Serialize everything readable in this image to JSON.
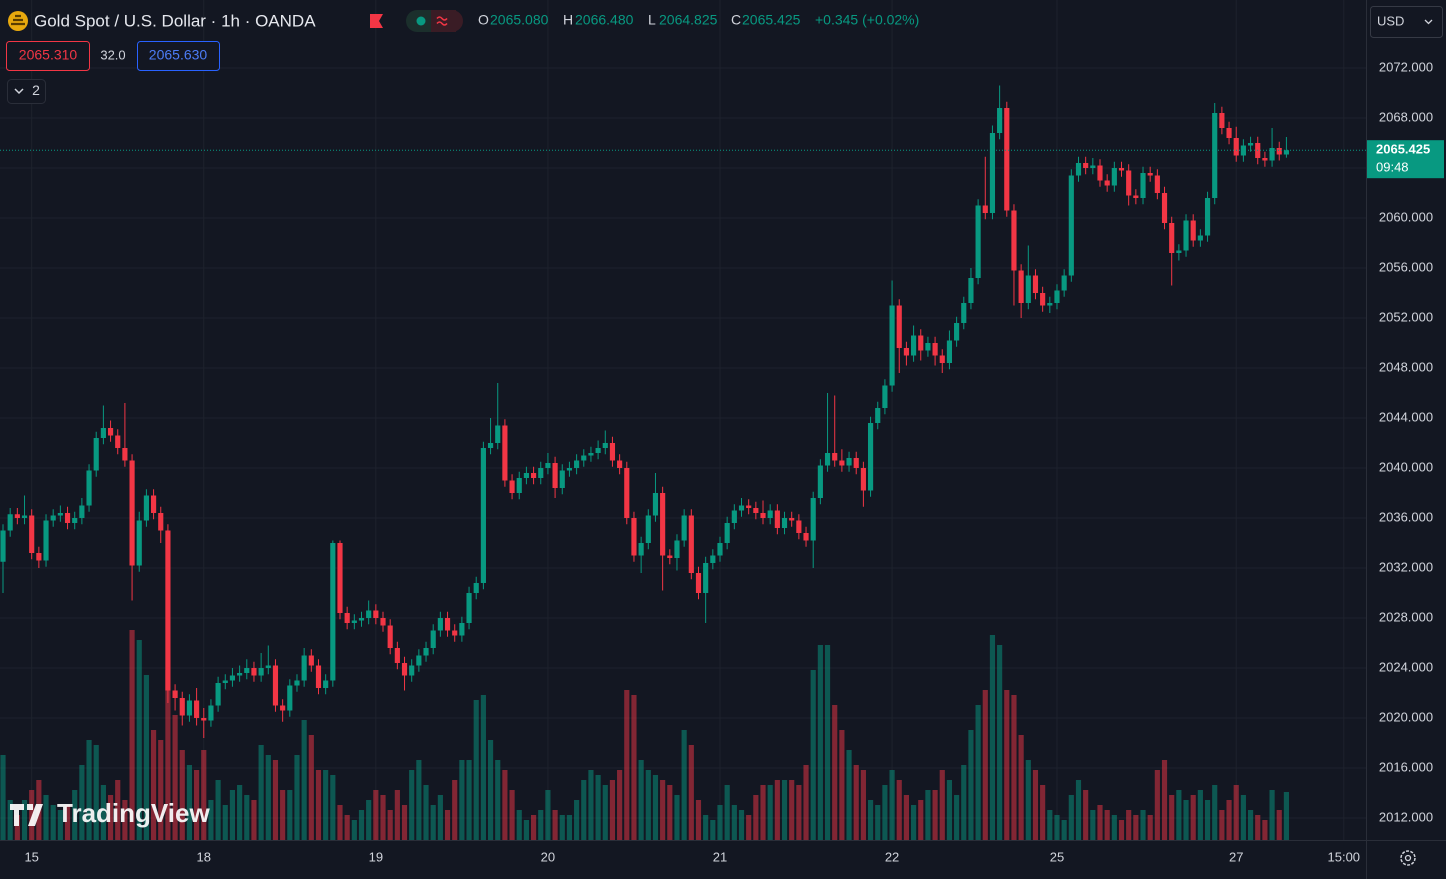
{
  "chart_data": {
    "type": "candlestick",
    "title": "Gold Spot / U.S. Dollar · 1h · OANDA",
    "legend": [
      {
        "key": "O",
        "value": "2065.080"
      },
      {
        "key": "H",
        "value": "2066.480"
      },
      {
        "key": "L",
        "value": "2064.825"
      },
      {
        "key": "C",
        "value": "2065.425"
      }
    ],
    "change": "+0.345 (+0.02%)",
    "bid": "2065.310",
    "spread": "32.0",
    "ask": "2065.630",
    "indicator_count": "2",
    "currency": "USD",
    "watermark": "TradingView",
    "up_color": "#089981",
    "down_color": "#f23645",
    "grid": true,
    "open": [
      2032.5,
      2035.0,
      2036.3,
      2036.0,
      2036.2,
      2033.2,
      2032.6,
      2035.8,
      2036.2,
      2036.4,
      2035.6,
      2036.0,
      2037.0,
      2039.8,
      2042.4,
      2043.2,
      2042.6,
      2041.6,
      2040.6,
      2032.2,
      2035.8,
      2037.8,
      2036.4,
      2035.0,
      2022.2,
      2021.6,
      2020.2,
      2021.4,
      2020.0,
      2019.8,
      2021.0,
      2022.8,
      2023.0,
      2023.4,
      2023.6,
      2024.0,
      2023.4,
      2024.0,
      2024.2,
      2021.0,
      2020.6,
      2022.6,
      2023.0,
      2025.0,
      2024.2,
      2022.4,
      2023.0,
      2034.0,
      2028.4,
      2027.6,
      2027.8,
      2028.0,
      2028.6,
      2028.0,
      2027.4,
      2025.6,
      2024.4,
      2023.4,
      2024.2,
      2025.0,
      2025.6,
      2027.0,
      2028.0,
      2027.0,
      2026.6,
      2027.6,
      2030.0,
      2030.8,
      2041.6,
      2042.0,
      2043.4,
      2039.0,
      2038.0,
      2039.2,
      2039.6,
      2039.2,
      2040.0,
      2040.4,
      2038.4,
      2039.8,
      2040.0,
      2040.6,
      2041.0,
      2041.2,
      2041.6,
      2042.0,
      2040.6,
      2040.0,
      2036.0,
      2033.0,
      2034.0,
      2036.2,
      2038.0,
      2033.0,
      2032.8,
      2034.2,
      2036.2,
      2031.6,
      2030.0,
      2032.4,
      2033.0,
      2034.0,
      2035.6,
      2036.6,
      2037.0,
      2036.8,
      2036.4,
      2036.0,
      2036.6,
      2035.2,
      2036.0,
      2035.8,
      2034.8,
      2034.2,
      2037.6,
      2040.2,
      2041.2,
      2040.6,
      2040.2,
      2040.8,
      2040.0,
      2038.2,
      2043.6,
      2044.8,
      2046.6,
      2053.0,
      2049.6,
      2049.0,
      2050.6,
      2049.4,
      2050.0,
      2049.0,
      2048.4,
      2050.2,
      2051.6,
      2053.2,
      2055.2,
      2061.0,
      2060.4,
      2066.8,
      2068.8,
      2060.6,
      2055.8,
      2053.2,
      2055.4,
      2054.0,
      2053.0,
      2053.2,
      2054.2,
      2055.4,
      2063.4,
      2064.4,
      2064.0,
      2064.2,
      2063.0,
      2062.6,
      2064.0,
      2063.8,
      2061.8,
      2061.6,
      2063.6,
      2063.4,
      2062.0,
      2059.6,
      2057.2,
      2057.4,
      2059.8,
      2058.2,
      2058.6,
      2061.6,
      2068.4,
      2067.2,
      2066.4,
      2065.0,
      2065.8,
      2066.0,
      2064.8,
      2064.6,
      2065.6,
      2065.08
    ],
    "high": [
      2035.5,
      2036.8,
      2036.8,
      2037.8,
      2036.7,
      2033.7,
      2036.3,
      2036.7,
      2037.0,
      2036.9,
      2036.5,
      2037.6,
      2040.3,
      2042.9,
      2045.0,
      2043.8,
      2043.1,
      2045.2,
      2041.1,
      2036.5,
      2038.3,
      2038.3,
      2036.9,
      2035.5,
      2022.7,
      2022.1,
      2021.9,
      2022.4,
      2020.8,
      2021.5,
      2023.3,
      2023.5,
      2024.0,
      2024.2,
      2024.7,
      2024.5,
      2025.2,
      2025.8,
      2024.7,
      2021.5,
      2023.1,
      2023.5,
      2025.6,
      2025.5,
      2024.7,
      2023.5,
      2034.2,
      2034.2,
      2028.9,
      2028.3,
      2028.5,
      2029.4,
      2029.1,
      2028.5,
      2027.9,
      2026.1,
      2024.9,
      2024.7,
      2025.5,
      2026.1,
      2027.5,
      2028.5,
      2028.5,
      2027.5,
      2028.1,
      2030.5,
      2031.3,
      2042.1,
      2044.0,
      2046.8,
      2043.9,
      2039.5,
      2039.7,
      2040.1,
      2040.1,
      2040.5,
      2041.2,
      2040.9,
      2040.3,
      2040.5,
      2041.1,
      2041.5,
      2041.7,
      2042.2,
      2043.0,
      2042.5,
      2041.1,
      2040.5,
      2036.5,
      2034.5,
      2036.7,
      2039.6,
      2038.5,
      2033.5,
      2034.7,
      2036.7,
      2036.7,
      2032.1,
      2032.9,
      2033.5,
      2034.5,
      2036.1,
      2037.1,
      2037.6,
      2037.5,
      2037.3,
      2037.4,
      2037.1,
      2037.1,
      2036.5,
      2036.5,
      2036.3,
      2035.3,
      2038.1,
      2040.7,
      2046.0,
      2045.8,
      2041.5,
      2041.3,
      2041.3,
      2040.5,
      2044.1,
      2045.3,
      2047.1,
      2055.0,
      2053.5,
      2050.1,
      2051.4,
      2051.1,
      2050.5,
      2050.5,
      2049.5,
      2051.0,
      2052.1,
      2053.7,
      2056.0,
      2061.5,
      2064.9,
      2067.4,
      2070.6,
      2069.3,
      2061.1,
      2056.3,
      2057.8,
      2055.9,
      2054.5,
      2053.7,
      2054.7,
      2055.9,
      2063.9,
      2064.9,
      2064.9,
      2064.8,
      2064.7,
      2063.5,
      2064.5,
      2064.5,
      2064.3,
      2062.3,
      2064.1,
      2064.1,
      2063.9,
      2062.5,
      2060.1,
      2057.9,
      2060.3,
      2060.3,
      2059.1,
      2062.1,
      2069.2,
      2068.9,
      2067.7,
      2067.3,
      2066.3,
      2066.5,
      2066.5,
      2065.3,
      2067.2,
      2066.1,
      2066.48
    ],
    "low": [
      2030.0,
      2034.5,
      2035.5,
      2035.5,
      2032.7,
      2032.0,
      2032.1,
      2035.3,
      2035.7,
      2035.1,
      2035.1,
      2035.5,
      2036.5,
      2039.3,
      2041.9,
      2042.1,
      2041.1,
      2040.1,
      2029.4,
      2031.7,
      2035.3,
      2035.9,
      2034.0,
      2021.2,
      2020.6,
      2019.4,
      2019.7,
      2019.4,
      2018.4,
      2019.3,
      2020.5,
      2022.3,
      2022.5,
      2022.9,
      2023.1,
      2022.9,
      2022.9,
      2023.5,
      2020.5,
      2019.7,
      2020.1,
      2022.1,
      2022.5,
      2023.7,
      2021.9,
      2021.9,
      2022.5,
      2027.9,
      2027.1,
      2027.1,
      2027.3,
      2027.5,
      2027.5,
      2026.9,
      2025.1,
      2023.9,
      2022.2,
      2022.9,
      2023.7,
      2024.5,
      2025.1,
      2026.5,
      2026.5,
      2026.1,
      2026.1,
      2027.1,
      2029.5,
      2030.3,
      2041.1,
      2041.5,
      2038.5,
      2037.5,
      2037.5,
      2038.7,
      2038.7,
      2038.7,
      2039.5,
      2037.6,
      2037.9,
      2039.3,
      2039.5,
      2040.1,
      2040.5,
      2040.7,
      2041.1,
      2040.1,
      2039.5,
      2035.5,
      2032.5,
      2031.6,
      2033.5,
      2035.7,
      2030.2,
      2032.3,
      2031.8,
      2033.7,
      2031.1,
      2029.5,
      2027.6,
      2031.9,
      2032.5,
      2033.5,
      2035.1,
      2036.1,
      2036.3,
      2035.9,
      2035.5,
      2035.5,
      2034.7,
      2034.7,
      2035.3,
      2034.3,
      2033.7,
      2032.0,
      2037.1,
      2039.7,
      2040.1,
      2039.7,
      2039.7,
      2039.5,
      2036.9,
      2037.7,
      2043.1,
      2044.3,
      2046.1,
      2047.6,
      2048.2,
      2048.5,
      2048.6,
      2048.9,
      2048.2,
      2047.6,
      2047.9,
      2049.7,
      2051.1,
      2052.7,
      2054.7,
      2059.9,
      2059.9,
      2066.3,
      2060.1,
      2053.0,
      2052.0,
      2052.7,
      2053.5,
      2052.5,
      2052.4,
      2052.7,
      2053.7,
      2054.9,
      2062.9,
      2063.5,
      2063.5,
      2062.5,
      2062.1,
      2062.1,
      2063.3,
      2061.0,
      2061.1,
      2061.1,
      2062.9,
      2061.5,
      2059.1,
      2054.6,
      2056.6,
      2056.9,
      2057.7,
      2057.7,
      2058.1,
      2061.1,
      2066.7,
      2065.9,
      2064.5,
      2064.5,
      2065.3,
      2064.3,
      2064.1,
      2064.1,
      2064.6,
      2064.825
    ],
    "close": [
      2035.0,
      2036.3,
      2036.0,
      2036.2,
      2033.2,
      2032.6,
      2035.8,
      2036.2,
      2036.4,
      2035.6,
      2036.0,
      2037.0,
      2039.8,
      2042.4,
      2043.2,
      2042.6,
      2041.6,
      2040.6,
      2032.2,
      2035.8,
      2037.8,
      2036.4,
      2035.0,
      2022.2,
      2021.6,
      2020.2,
      2021.4,
      2020.0,
      2019.8,
      2021.0,
      2022.8,
      2023.0,
      2023.4,
      2023.6,
      2024.0,
      2023.4,
      2024.0,
      2024.2,
      2021.0,
      2020.6,
      2022.6,
      2023.0,
      2025.0,
      2024.2,
      2022.4,
      2023.0,
      2034.0,
      2028.4,
      2027.6,
      2027.8,
      2028.0,
      2028.6,
      2028.0,
      2027.4,
      2025.6,
      2024.4,
      2023.4,
      2024.2,
      2025.0,
      2025.6,
      2027.0,
      2028.0,
      2027.0,
      2026.6,
      2027.6,
      2030.0,
      2030.8,
      2041.6,
      2042.0,
      2043.4,
      2039.0,
      2038.0,
      2039.2,
      2039.6,
      2039.2,
      2040.0,
      2040.4,
      2038.4,
      2039.8,
      2040.0,
      2040.6,
      2041.0,
      2041.2,
      2041.6,
      2042.0,
      2040.6,
      2040.0,
      2036.0,
      2033.0,
      2034.0,
      2036.2,
      2038.0,
      2033.0,
      2032.8,
      2034.2,
      2036.2,
      2031.6,
      2030.0,
      2032.4,
      2033.0,
      2034.0,
      2035.6,
      2036.6,
      2037.0,
      2036.8,
      2036.4,
      2036.0,
      2036.6,
      2035.2,
      2036.0,
      2035.8,
      2034.8,
      2034.2,
      2037.6,
      2040.2,
      2041.2,
      2040.6,
      2040.2,
      2040.8,
      2040.0,
      2038.2,
      2043.6,
      2044.8,
      2046.6,
      2053.0,
      2049.6,
      2049.0,
      2050.6,
      2049.4,
      2050.0,
      2049.0,
      2048.4,
      2050.2,
      2051.6,
      2053.2,
      2055.2,
      2061.0,
      2060.4,
      2066.8,
      2068.8,
      2060.6,
      2055.8,
      2053.2,
      2055.4,
      2054.0,
      2053.0,
      2053.2,
      2054.2,
      2055.4,
      2063.4,
      2064.4,
      2064.0,
      2064.2,
      2063.0,
      2062.6,
      2064.0,
      2063.8,
      2061.8,
      2061.6,
      2063.6,
      2063.4,
      2062.0,
      2059.6,
      2057.2,
      2057.4,
      2059.8,
      2058.2,
      2058.6,
      2061.6,
      2068.4,
      2067.2,
      2066.4,
      2065.0,
      2065.8,
      2066.0,
      2064.8,
      2064.6,
      2065.6,
      2065.08,
      2065.425
    ],
    "volume": [
      85,
      40,
      25,
      40,
      50,
      60,
      45,
      35,
      30,
      35,
      50,
      75,
      100,
      95,
      55,
      45,
      60,
      40,
      210,
      200,
      165,
      110,
      100,
      170,
      125,
      90,
      75,
      70,
      90,
      40,
      60,
      35,
      50,
      55,
      45,
      40,
      95,
      85,
      80,
      50,
      50,
      85,
      120,
      105,
      70,
      70,
      65,
      35,
      25,
      20,
      30,
      40,
      50,
      45,
      30,
      50,
      35,
      70,
      80,
      55,
      35,
      45,
      30,
      60,
      80,
      80,
      140,
      145,
      100,
      80,
      70,
      50,
      30,
      20,
      25,
      30,
      50,
      30,
      25,
      25,
      40,
      60,
      70,
      65,
      55,
      60,
      70,
      150,
      145,
      80,
      70,
      65,
      60,
      55,
      45,
      110,
      95,
      40,
      25,
      20,
      35,
      55,
      35,
      30,
      25,
      45,
      55,
      55,
      60,
      60,
      60,
      55,
      75,
      170,
      195,
      195,
      135,
      110,
      90,
      75,
      70,
      40,
      35,
      55,
      70,
      60,
      45,
      35,
      40,
      50,
      50,
      70,
      60,
      45,
      75,
      110,
      135,
      150,
      205,
      195,
      150,
      145,
      105,
      80,
      70,
      55,
      30,
      25,
      20,
      45,
      60,
      50,
      30,
      35,
      30,
      25,
      20,
      30,
      25,
      30,
      25,
      70,
      80,
      45,
      50,
      40,
      45,
      50,
      40,
      55,
      30,
      40,
      55,
      45,
      30,
      25,
      20,
      50,
      30,
      48
    ],
    "xlim": [
      -0.42,
      190.1
    ],
    "xticks": [
      {
        "value": 4,
        "label": "15"
      },
      {
        "value": 28,
        "label": "18"
      },
      {
        "value": 52,
        "label": "19"
      },
      {
        "value": 76,
        "label": "20"
      },
      {
        "value": 100,
        "label": "21"
      },
      {
        "value": 124,
        "label": "22"
      },
      {
        "value": 147,
        "label": "25"
      },
      {
        "value": 172,
        "label": "27"
      },
      {
        "value": 187,
        "label": "15:00"
      }
    ],
    "ylim": [
      2010.24,
      2077.44
    ],
    "yticks": [
      {
        "value": 2012,
        "label": "2012.000"
      },
      {
        "value": 2016,
        "label": "2016.000"
      },
      {
        "value": 2020,
        "label": "2020.000"
      },
      {
        "value": 2024,
        "label": "2024.000"
      },
      {
        "value": 2028,
        "label": "2028.000"
      },
      {
        "value": 2032,
        "label": "2032.000"
      },
      {
        "value": 2036,
        "label": "2036.000"
      },
      {
        "value": 2040,
        "label": "2040.000"
      },
      {
        "value": 2044,
        "label": "2044.000"
      },
      {
        "value": 2048,
        "label": "2048.000"
      },
      {
        "value": 2052,
        "label": "2052.000"
      },
      {
        "value": 2056,
        "label": "2056.000"
      },
      {
        "value": 2060,
        "label": "2060.000"
      },
      {
        "value": 2064,
        "label": "2064.000"
      },
      {
        "value": 2068,
        "label": "2068.000"
      },
      {
        "value": 2072,
        "label": "2072.000"
      }
    ],
    "last_price": 2065.425,
    "countdown": "09:48"
  }
}
